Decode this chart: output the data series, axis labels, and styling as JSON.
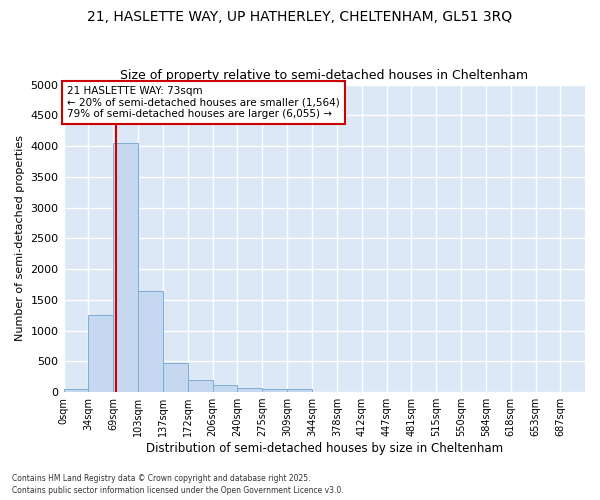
{
  "title1": "21, HASLETTE WAY, UP HATHERLEY, CHELTENHAM, GL51 3RQ",
  "title2": "Size of property relative to semi-detached houses in Cheltenham",
  "xlabel": "Distribution of semi-detached houses by size in Cheltenham",
  "ylabel": "Number of semi-detached properties",
  "bar_color": "#c5d8f0",
  "bar_edge_color": "#7aaed6",
  "background_color": "#dce8f5",
  "grid_color": "#ffffff",
  "bin_labels": [
    "0sqm",
    "34sqm",
    "69sqm",
    "103sqm",
    "137sqm",
    "172sqm",
    "206sqm",
    "240sqm",
    "275sqm",
    "309sqm",
    "344sqm",
    "378sqm",
    "412sqm",
    "447sqm",
    "481sqm",
    "515sqm",
    "550sqm",
    "584sqm",
    "618sqm",
    "653sqm",
    "687sqm"
  ],
  "bin_edges": [
    0,
    34,
    69,
    103,
    137,
    172,
    206,
    240,
    275,
    309,
    344,
    378,
    412,
    447,
    481,
    515,
    550,
    584,
    618,
    653,
    687,
    721
  ],
  "bar_heights": [
    50,
    1250,
    4050,
    1650,
    475,
    200,
    115,
    65,
    55,
    50,
    0,
    0,
    0,
    0,
    0,
    0,
    0,
    0,
    0,
    0,
    0
  ],
  "property_size": 73,
  "property_label": "21 HASLETTE WAY: 73sqm",
  "pct_smaller": 20,
  "pct_larger": 79,
  "count_smaller": 1564,
  "count_larger": 6055,
  "red_line_color": "#cc0000",
  "ylim": [
    0,
    5000
  ],
  "yticks": [
    0,
    500,
    1000,
    1500,
    2000,
    2500,
    3000,
    3500,
    4000,
    4500,
    5000
  ],
  "annotation_box_color": "#ffffff",
  "annotation_box_edge": "#cc0000",
  "fig_bg": "#ffffff",
  "footer1": "Contains HM Land Registry data © Crown copyright and database right 2025.",
  "footer2": "Contains public sector information licensed under the Open Government Licence v3.0."
}
